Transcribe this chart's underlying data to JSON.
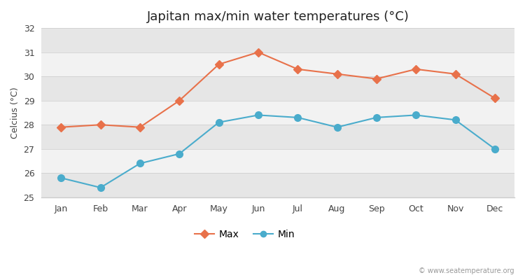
{
  "title": "Japitan max/min water temperatures (°C)",
  "ylabel": "Celcius (°C)",
  "months": [
    "Jan",
    "Feb",
    "Mar",
    "Apr",
    "May",
    "Jun",
    "Jul",
    "Aug",
    "Sep",
    "Oct",
    "Nov",
    "Dec"
  ],
  "max_values": [
    27.9,
    28.0,
    27.9,
    29.0,
    30.5,
    31.0,
    30.3,
    30.1,
    29.9,
    30.3,
    30.1,
    29.1
  ],
  "min_values": [
    25.8,
    25.4,
    26.4,
    26.8,
    28.1,
    28.4,
    28.3,
    27.9,
    28.3,
    28.4,
    28.2,
    27.0
  ],
  "max_color": "#e8714a",
  "min_color": "#4aaccc",
  "ylim": [
    25,
    32
  ],
  "yticks": [
    25,
    26,
    27,
    28,
    29,
    30,
    31,
    32
  ],
  "band_light": "#f2f2f2",
  "band_dark": "#e6e6e6",
  "outer_bg": "#ffffff",
  "watermark": "© www.seatemperature.org",
  "legend_max": "Max",
  "legend_min": "Min",
  "title_fontsize": 13,
  "label_fontsize": 9,
  "tick_fontsize": 9,
  "spine_color": "#cccccc"
}
